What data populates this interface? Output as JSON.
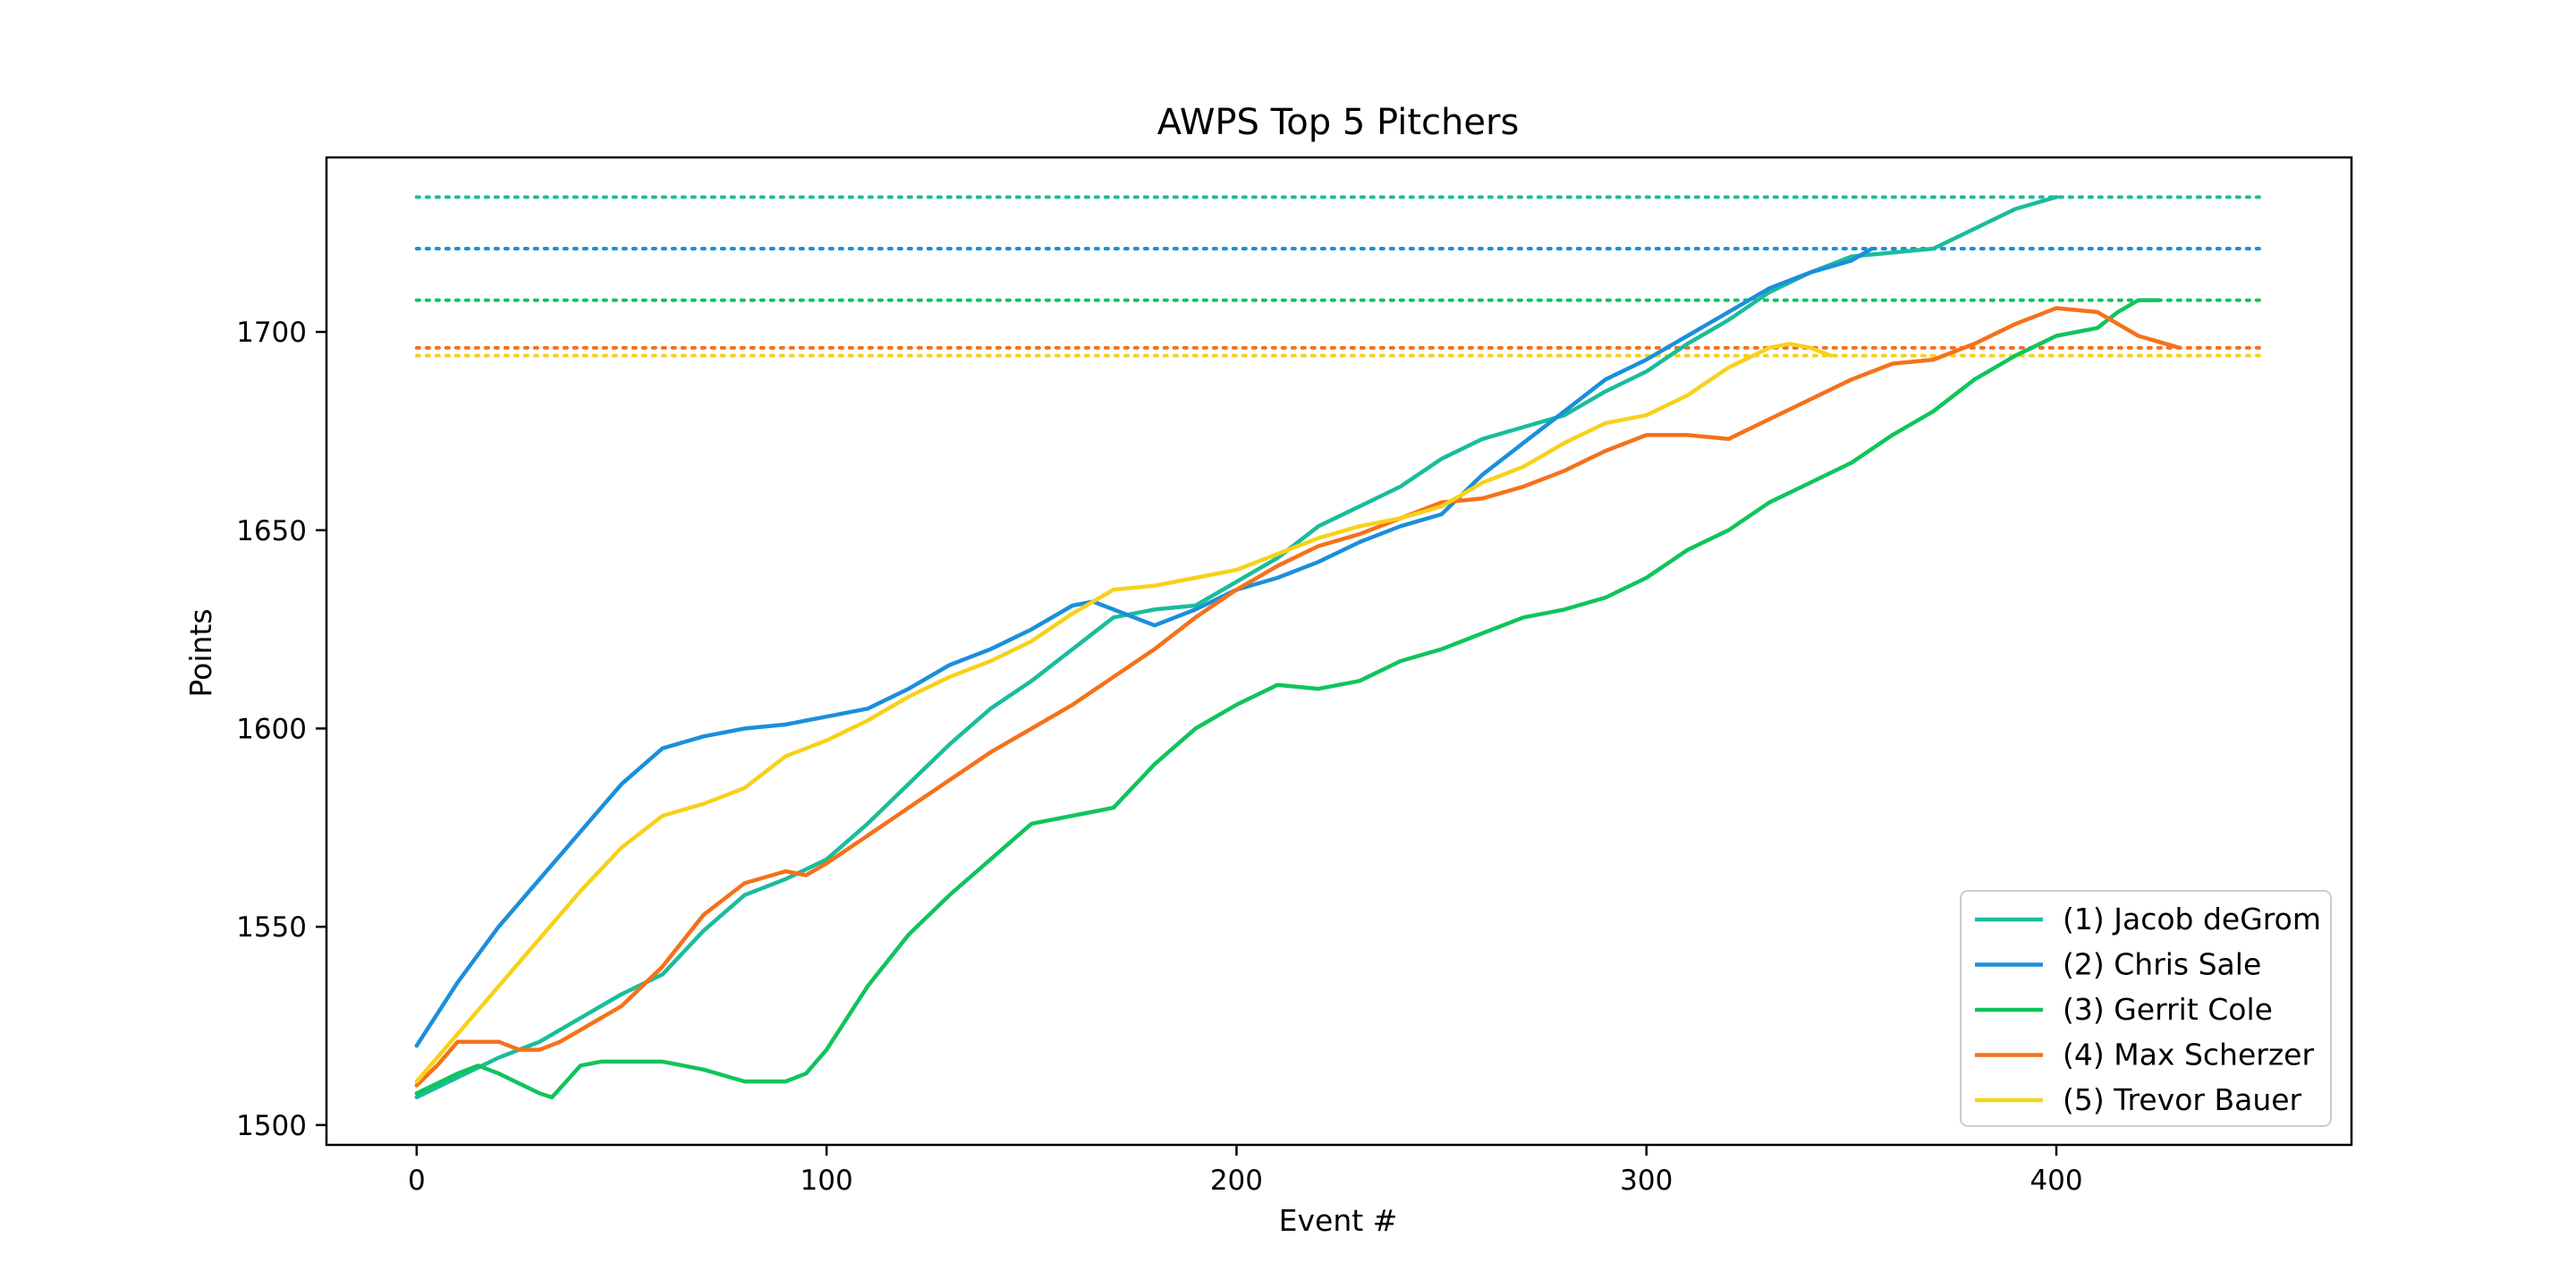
{
  "chart_data": {
    "type": "line",
    "title": "AWPS Top 5 Pitchers",
    "xlabel": "Event #",
    "ylabel": "Points",
    "xlim": [
      -22,
      472
    ],
    "ylim": [
      1495,
      1744
    ],
    "xticks": [
      0,
      100,
      200,
      300,
      400
    ],
    "yticks": [
      1500,
      1550,
      1600,
      1650,
      1700
    ],
    "grid": false,
    "legend_position": "bottom-right",
    "series": [
      {
        "name": "(1) Jacob deGrom",
        "color": "#1abc9c",
        "final_value": 1734,
        "reference_line": {
          "value": 1734,
          "x_start": 0,
          "x_end": 450,
          "style": "dotted"
        },
        "x": [
          0,
          10,
          20,
          30,
          40,
          50,
          60,
          70,
          80,
          90,
          100,
          110,
          120,
          130,
          140,
          150,
          160,
          170,
          180,
          190,
          200,
          210,
          220,
          230,
          240,
          250,
          260,
          270,
          280,
          290,
          300,
          310,
          320,
          330,
          340,
          350,
          360,
          370,
          380,
          390,
          400
        ],
        "y": [
          1507,
          1512,
          1517,
          1521,
          1527,
          1533,
          1538,
          1549,
          1558,
          1562,
          1567,
          1576,
          1586,
          1596,
          1605,
          1612,
          1620,
          1628,
          1630,
          1631,
          1637,
          1643,
          1651,
          1656,
          1661,
          1668,
          1673,
          1676,
          1679,
          1685,
          1690,
          1697,
          1703,
          1710,
          1715,
          1719,
          1720,
          1721,
          1726,
          1731,
          1734
        ]
      },
      {
        "name": "(2) Chris Sale",
        "color": "#1b8fdb",
        "final_value": 1721,
        "reference_line": {
          "value": 1721,
          "x_start": 0,
          "x_end": 450,
          "style": "dotted"
        },
        "x": [
          0,
          10,
          20,
          30,
          40,
          50,
          60,
          70,
          80,
          90,
          100,
          110,
          120,
          130,
          140,
          150,
          160,
          165,
          170,
          180,
          190,
          200,
          210,
          220,
          230,
          240,
          250,
          260,
          270,
          280,
          290,
          300,
          310,
          320,
          330,
          340,
          350,
          355
        ],
        "y": [
          1520,
          1536,
          1550,
          1562,
          1574,
          1586,
          1595,
          1598,
          1600,
          1601,
          1603,
          1605,
          1610,
          1616,
          1620,
          1625,
          1631,
          1632,
          1630,
          1626,
          1630,
          1635,
          1638,
          1642,
          1647,
          1651,
          1654,
          1664,
          1672,
          1680,
          1688,
          1693,
          1699,
          1705,
          1711,
          1715,
          1718,
          1721
        ]
      },
      {
        "name": "(3) Gerrit Cole",
        "color": "#10c45c",
        "final_value": 1708,
        "reference_line": {
          "value": 1708,
          "x_start": 0,
          "x_end": 450,
          "style": "dotted"
        },
        "x": [
          0,
          10,
          15,
          20,
          30,
          33,
          40,
          45,
          50,
          60,
          70,
          80,
          90,
          95,
          100,
          110,
          120,
          130,
          140,
          150,
          160,
          170,
          180,
          190,
          200,
          210,
          220,
          230,
          240,
          250,
          260,
          270,
          280,
          290,
          300,
          310,
          320,
          330,
          340,
          350,
          360,
          370,
          380,
          390,
          400,
          410,
          415,
          420,
          425
        ],
        "y": [
          1508,
          1513,
          1515,
          1513,
          1508,
          1507,
          1515,
          1516,
          1516,
          1516,
          1514,
          1511,
          1511,
          1513,
          1519,
          1535,
          1548,
          1558,
          1567,
          1576,
          1578,
          1580,
          1591,
          1600,
          1606,
          1611,
          1610,
          1612,
          1617,
          1620,
          1624,
          1628,
          1630,
          1633,
          1638,
          1645,
          1650,
          1657,
          1662,
          1667,
          1674,
          1680,
          1688,
          1694,
          1699,
          1701,
          1705,
          1708,
          1708
        ]
      },
      {
        "name": "(4) Max Scherzer",
        "color": "#f5711b",
        "final_value": 1696,
        "reference_line": {
          "value": 1696,
          "x_start": 0,
          "x_end": 450,
          "style": "dotted"
        },
        "x": [
          0,
          5,
          10,
          15,
          20,
          25,
          30,
          35,
          40,
          50,
          60,
          70,
          80,
          90,
          95,
          100,
          110,
          120,
          130,
          140,
          150,
          160,
          170,
          180,
          190,
          200,
          210,
          220,
          230,
          240,
          250,
          260,
          270,
          280,
          290,
          300,
          310,
          320,
          330,
          340,
          350,
          360,
          370,
          380,
          390,
          400,
          410,
          415,
          420,
          430
        ],
        "y": [
          1510,
          1515,
          1521,
          1521,
          1521,
          1519,
          1519,
          1521,
          1524,
          1530,
          1540,
          1553,
          1561,
          1564,
          1563,
          1566,
          1573,
          1580,
          1587,
          1594,
          1600,
          1606,
          1613,
          1620,
          1628,
          1635,
          1641,
          1646,
          1649,
          1653,
          1657,
          1658,
          1661,
          1665,
          1670,
          1674,
          1674,
          1673,
          1678,
          1683,
          1688,
          1692,
          1693,
          1697,
          1702,
          1706,
          1705,
          1702,
          1699,
          1696
        ]
      },
      {
        "name": "(5) Trevor Bauer",
        "color": "#f7d11b",
        "final_value": 1694,
        "reference_line": {
          "value": 1694,
          "x_start": 0,
          "x_end": 450,
          "style": "dotted"
        },
        "x": [
          0,
          10,
          20,
          30,
          40,
          50,
          60,
          70,
          80,
          90,
          100,
          110,
          120,
          130,
          140,
          150,
          160,
          170,
          180,
          190,
          200,
          210,
          220,
          230,
          240,
          250,
          260,
          270,
          280,
          290,
          300,
          310,
          320,
          330,
          335,
          340,
          345
        ],
        "y": [
          1511,
          1523,
          1535,
          1547,
          1559,
          1570,
          1578,
          1581,
          1585,
          1593,
          1597,
          1602,
          1608,
          1613,
          1617,
          1622,
          1629,
          1635,
          1636,
          1638,
          1640,
          1644,
          1648,
          1651,
          1653,
          1656,
          1662,
          1666,
          1672,
          1677,
          1679,
          1684,
          1691,
          1696,
          1697,
          1696,
          1694
        ]
      }
    ]
  }
}
